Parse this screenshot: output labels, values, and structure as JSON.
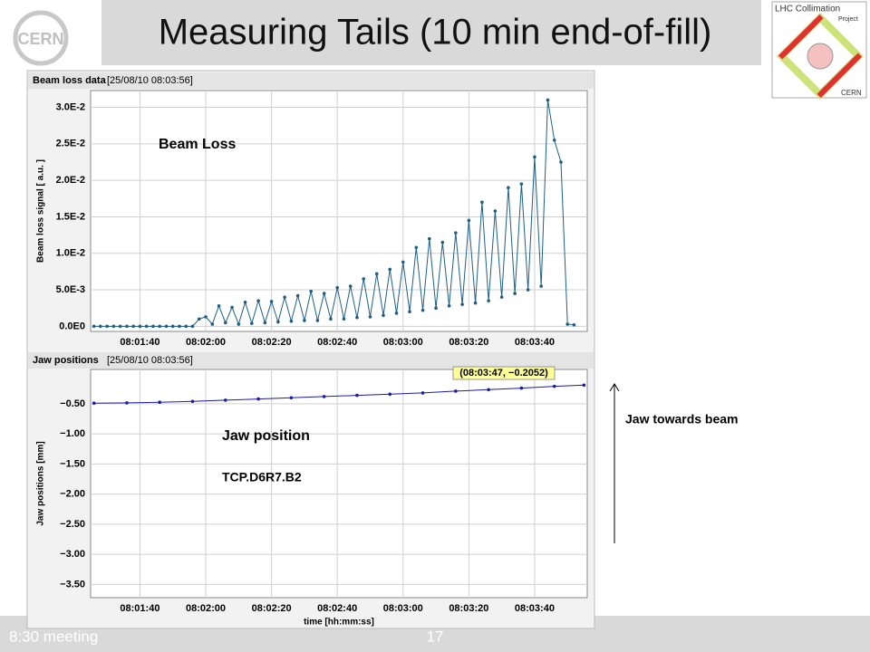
{
  "slide": {
    "title": "Measuring Tails (10 min end-of-fill)",
    "logo_left": "CERN",
    "logo_right_title": "LHC Collimation",
    "logo_right_sub": "Project",
    "logo_right_bottom": "CERN",
    "side_note": "Jaw towards beam",
    "footer": "8:30 meeting",
    "page_number": "17"
  },
  "chart_data": [
    {
      "type": "line",
      "title": "Beam loss data",
      "timestamp": "[25/08/10 08:03:56]",
      "ylabel": "Beam loss signal [ a.u. ]",
      "annotations": [
        "Beam Loss"
      ],
      "color": "#1f5f86",
      "grid": true,
      "xlim": [
        "08:01:25",
        "08:03:56"
      ],
      "xticks": [
        "08:01:40",
        "08:02:00",
        "08:02:20",
        "08:02:40",
        "08:03:00",
        "08:03:20",
        "08:03:40"
      ],
      "ylim": [
        -0.0007,
        0.0323
      ],
      "yticks": [
        {
          "value": 0,
          "label": "0.0E0"
        },
        {
          "value": 0.005,
          "label": "5.0E-3"
        },
        {
          "value": 0.01,
          "label": "1.0E-2"
        },
        {
          "value": 0.015,
          "label": "1.5E-2"
        },
        {
          "value": 0.02,
          "label": "2.0E-2"
        },
        {
          "value": 0.025,
          "label": "2.5E-2"
        },
        {
          "value": 0.03,
          "label": "3.0E-2"
        }
      ],
      "x": [
        "08:01:26",
        "08:01:28",
        "08:01:30",
        "08:01:32",
        "08:01:34",
        "08:01:36",
        "08:01:38",
        "08:01:40",
        "08:01:42",
        "08:01:44",
        "08:01:46",
        "08:01:48",
        "08:01:50",
        "08:01:52",
        "08:01:54",
        "08:01:56",
        "08:01:58",
        "08:02:00",
        "08:02:02",
        "08:02:04",
        "08:02:06",
        "08:02:08",
        "08:02:10",
        "08:02:12",
        "08:02:14",
        "08:02:16",
        "08:02:18",
        "08:02:20",
        "08:02:22",
        "08:02:24",
        "08:02:26",
        "08:02:28",
        "08:02:30",
        "08:02:32",
        "08:02:34",
        "08:02:36",
        "08:02:38",
        "08:02:40",
        "08:02:42",
        "08:02:44",
        "08:02:46",
        "08:02:48",
        "08:02:50",
        "08:02:52",
        "08:02:54",
        "08:02:56",
        "08:02:58",
        "08:03:00",
        "08:03:02",
        "08:03:04",
        "08:03:06",
        "08:03:08",
        "08:03:10",
        "08:03:12",
        "08:03:14",
        "08:03:16",
        "08:03:18",
        "08:03:20",
        "08:03:22",
        "08:03:24",
        "08:03:26",
        "08:03:28",
        "08:03:30",
        "08:03:32",
        "08:03:34",
        "08:03:36",
        "08:03:38",
        "08:03:40",
        "08:03:42",
        "08:03:44",
        "08:03:46",
        "08:03:48",
        "08:03:50",
        "08:03:52"
      ],
      "values": [
        0,
        0,
        0,
        0,
        0,
        0,
        0,
        0,
        0,
        0,
        0,
        0,
        0,
        0,
        0,
        0,
        0.001,
        0.0013,
        0.0003,
        0.0028,
        0.0005,
        0.0026,
        0.0003,
        0.0033,
        0.0004,
        0.0035,
        0.0005,
        0.0034,
        0.0006,
        0.004,
        0.0007,
        0.0042,
        0.0008,
        0.0048,
        0.0008,
        0.0045,
        0.001,
        0.0053,
        0.001,
        0.0055,
        0.0012,
        0.0065,
        0.0013,
        0.0072,
        0.0015,
        0.0078,
        0.0018,
        0.0088,
        0.002,
        0.0108,
        0.0022,
        0.012,
        0.0025,
        0.0115,
        0.0028,
        0.0128,
        0.003,
        0.0145,
        0.0032,
        0.017,
        0.0035,
        0.0158,
        0.004,
        0.019,
        0.0045,
        0.0195,
        0.005,
        0.0232,
        0.0055,
        0.031,
        0.0255,
        0.0225,
        0.0003,
        0.0002
      ]
    },
    {
      "type": "line",
      "title": "Jaw positions",
      "timestamp": "[25/08/10 08:03:56]",
      "ylabel": "Jaw positions [mm]",
      "xlabel": "time [hh:mm:ss]",
      "annotations": [
        "Jaw position",
        "TCP.D6R7.B2"
      ],
      "tooltip": "(08:03:47, −0.2052)",
      "color": "#1a1aa8",
      "grid": true,
      "xlim": [
        "08:01:25",
        "08:03:56"
      ],
      "xticks": [
        "08:01:40",
        "08:02:00",
        "08:02:20",
        "08:02:40",
        "08:03:00",
        "08:03:20",
        "08:03:40"
      ],
      "ylim": [
        -3.72,
        0.07
      ],
      "yticks": [
        {
          "value": -0.5,
          "label": "−0.50"
        },
        {
          "value": -1,
          "label": "−1.00"
        },
        {
          "value": -1.5,
          "label": "−1.50"
        },
        {
          "value": -2,
          "label": "−2.00"
        },
        {
          "value": -2.5,
          "label": "−2.50"
        },
        {
          "value": -3,
          "label": "−3.00"
        },
        {
          "value": -3.5,
          "label": "−3.50"
        }
      ],
      "x": [
        "08:01:26",
        "08:01:36",
        "08:01:46",
        "08:01:56",
        "08:02:06",
        "08:02:16",
        "08:02:26",
        "08:02:36",
        "08:02:46",
        "08:02:56",
        "08:03:06",
        "08:03:16",
        "08:03:26",
        "08:03:36",
        "08:03:46",
        "08:03:55"
      ],
      "values": [
        -0.49,
        -0.485,
        -0.475,
        -0.46,
        -0.44,
        -0.42,
        -0.4,
        -0.38,
        -0.36,
        -0.34,
        -0.32,
        -0.29,
        -0.265,
        -0.24,
        -0.21,
        -0.19
      ]
    }
  ]
}
